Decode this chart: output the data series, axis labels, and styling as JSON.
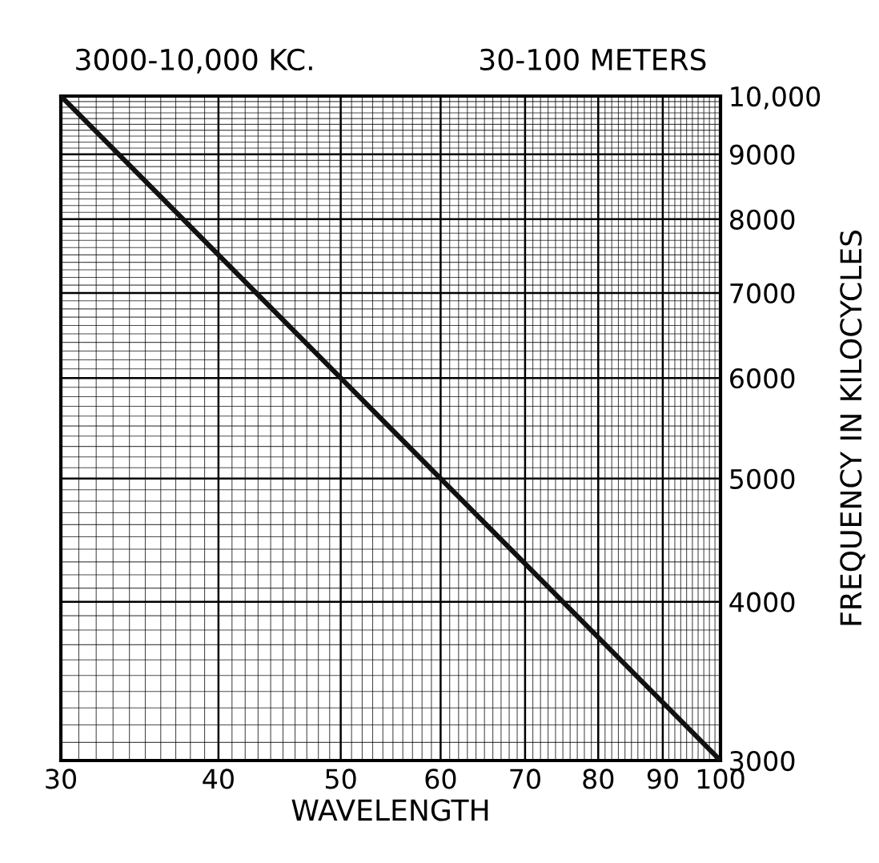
{
  "chart_data": {
    "type": "line",
    "title": "3000-10,000 KC.",
    "subtitle": "30-100 METERS",
    "xlabel": "WAVELENGTH",
    "ylabel": "FREQUENCY IN KILOCYCLES",
    "x": [
      30,
      100
    ],
    "series": [
      {
        "color": "#111111",
        "values": [
          10000,
          3000
        ]
      }
    ],
    "log": "xy",
    "grid": true,
    "marker": "none",
    "line_style": "solid",
    "xlim": [
      30,
      100
    ],
    "ylim": [
      3000,
      10000
    ],
    "xticks": [
      30,
      40,
      50,
      60,
      70,
      80,
      90,
      100
    ],
    "yticks": [
      3000,
      4000,
      5000,
      6000,
      7000,
      8000,
      9000,
      {
        "value": 10000,
        "label": "10,000"
      }
    ]
  }
}
